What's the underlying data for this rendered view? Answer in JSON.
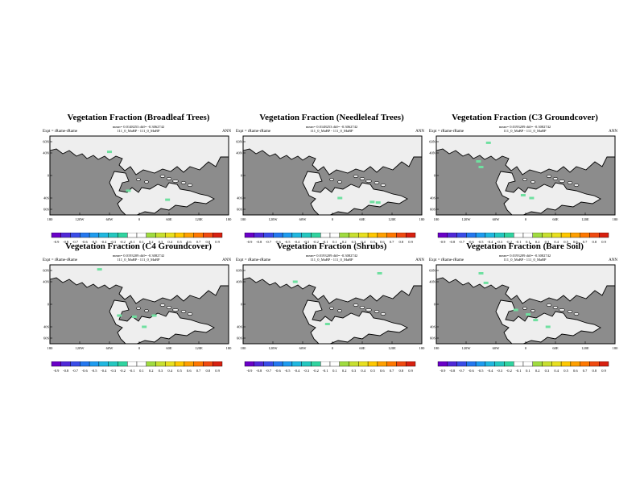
{
  "figure": {
    "panels": [
      {
        "title": "Vegetation Fraction (Broadleaf Trees)",
        "stats": "mean= 0.0148253 diff= -0.3062742",
        "runs": "111_0_MaBP - 111_0_MaBP",
        "expt": "Expt = rRame-rRame",
        "season": "ANN",
        "xticks": [
          "180",
          "120W",
          "60W",
          "0",
          "60E",
          "120E",
          "180"
        ],
        "patches": [
          [
            -60,
            42
          ],
          [
            -22,
            -27
          ],
          [
            57,
            -43
          ]
        ]
      },
      {
        "title": "Vegetation Fraction (Needleleaf Trees)",
        "stats": "mean= 0.0148253 diff= -0.3062742",
        "runs": "111_0_MaBP - 111_0_MaBP",
        "expt": "Expt = rRame-rRame",
        "season": "ANN",
        "xticks": [
          "180",
          "120W",
          "60W",
          "0",
          "60E",
          "120E",
          "180"
        ],
        "patches": [
          [
            15,
            -40
          ],
          [
            80,
            -47
          ],
          [
            92,
            -48
          ]
        ]
      },
      {
        "title": "Vegetation Fraction (C3 Groundcover)",
        "stats": "mean= 0.0193209 diff= -0.3082742",
        "runs": "111_0_MaBP - 111_0_MaBP",
        "expt": "Expt = rRame-rRame",
        "season": "ANN",
        "xticks": [
          "180",
          "120W",
          "60W",
          "0",
          "60E",
          "120E",
          "180"
        ],
        "patches": [
          [
            -95,
            25
          ],
          [
            -90,
            15
          ],
          [
            -75,
            58
          ],
          [
            -5,
            -35
          ],
          [
            12,
            -40
          ]
        ]
      },
      {
        "title": "Vegetation Fraction (C4 Groundcover)",
        "stats": "mean= 0.0193209 diff= -0.3082742",
        "runs": "111_0_MaBP - 111_0_MaBP",
        "expt": "Expt = rRame-rRame",
        "season": "ANN",
        "xticks": [
          "180",
          "120W",
          "60W",
          "0",
          "60E",
          "120E",
          "180"
        ],
        "patches": [
          [
            -80,
            62
          ],
          [
            -40,
            -20
          ],
          [
            -10,
            -22
          ],
          [
            30,
            -20
          ],
          [
            10,
            -40
          ]
        ]
      },
      {
        "title": "Vegetation Fraction (Shrubs)",
        "stats": "mean= 0.0193209 diff= -0.3082742",
        "runs": "111_0_MaBP - 111_0_MaBP",
        "expt": "Expt = rRame-rRame",
        "season": "ANN",
        "xticks": [
          "180",
          "120W",
          "60W",
          "0",
          "60E",
          "120E",
          "180"
        ],
        "patches": [
          [
            -75,
            40
          ],
          [
            -10,
            -35
          ],
          [
            95,
            55
          ]
        ]
      },
      {
        "title": "Vegetation Fraction (Bare Soil)",
        "stats": "mean= 0.0193209 diff= -0.3082742",
        "runs": "111_0_MaBP - 111_0_MaBP",
        "expt": "Expt = rRame-rRame",
        "season": "ANN",
        "xticks": [
          "180",
          "120W",
          "60W",
          "0",
          "60E",
          "120E",
          "180"
        ],
        "patches": [
          [
            -80,
            38
          ],
          [
            -90,
            55
          ],
          [
            -20,
            -10
          ],
          [
            5,
            -18
          ],
          [
            20,
            -28
          ],
          [
            45,
            -40
          ]
        ]
      }
    ],
    "yticks": [
      "60N",
      "40N",
      "0",
      "40S",
      "60S"
    ],
    "colorbar_labels": [
      "-0.9",
      "-0.8",
      "-0.7",
      "-0.6",
      "-0.5",
      "-0.4",
      "-0.3",
      "-0.2",
      "-0.1",
      "0.1",
      "0.2",
      "0.3",
      "0.4",
      "0.5",
      "0.6",
      "0.7",
      "0.8",
      "0.9"
    ],
    "colors": {
      "ocean": "#8c8c8c",
      "land": "#eeeeee",
      "coast": "#000000",
      "patch": "#6fe0a0"
    },
    "cbar_colors": [
      "#6a00c8",
      "#5028d8",
      "#3a4ce8",
      "#2478f0",
      "#1e9cf0",
      "#20b8e0",
      "#24c8c0",
      "#30d4a0",
      "#ffffff",
      "#ffffff",
      "#a0dc40",
      "#c8e030",
      "#e8e020",
      "#ffc800",
      "#ffa000",
      "#ff7800",
      "#f04a10",
      "#d82010"
    ]
  },
  "chart_data": [
    {
      "type": "heatmap",
      "title": "Vegetation Fraction (Broadleaf Trees)",
      "xlabel": "",
      "ylabel": "",
      "x_ticks": [
        "180",
        "120W",
        "60W",
        "0",
        "60E",
        "120E",
        "180"
      ],
      "y_ticks": [
        "60N",
        "40N",
        "0",
        "40S",
        "60S"
      ],
      "xlim": [
        -180,
        180
      ],
      "ylim": [
        -70,
        70
      ],
      "color_levels": [
        -0.9,
        -0.8,
        -0.7,
        -0.6,
        -0.5,
        -0.4,
        -0.3,
        -0.2,
        -0.1,
        0.1,
        0.2,
        0.3,
        0.4,
        0.5,
        0.6,
        0.7,
        0.8,
        0.9
      ]
    },
    {
      "type": "heatmap",
      "title": "Vegetation Fraction (Needleleaf Trees)",
      "xlabel": "",
      "ylabel": "",
      "x_ticks": [
        "180",
        "120W",
        "60W",
        "0",
        "60E",
        "120E",
        "180"
      ],
      "y_ticks": [
        "60N",
        "40N",
        "0",
        "40S",
        "60S"
      ],
      "xlim": [
        -180,
        180
      ],
      "ylim": [
        -70,
        70
      ],
      "color_levels": [
        -0.9,
        -0.8,
        -0.7,
        -0.6,
        -0.5,
        -0.4,
        -0.3,
        -0.2,
        -0.1,
        0.1,
        0.2,
        0.3,
        0.4,
        0.5,
        0.6,
        0.7,
        0.8,
        0.9
      ]
    },
    {
      "type": "heatmap",
      "title": "Vegetation Fraction (C3 Groundcover)",
      "xlabel": "",
      "ylabel": "",
      "x_ticks": [
        "180",
        "120W",
        "60W",
        "0",
        "60E",
        "120E",
        "180"
      ],
      "y_ticks": [
        "60N",
        "40N",
        "0",
        "40S",
        "60S"
      ],
      "xlim": [
        -180,
        180
      ],
      "ylim": [
        -70,
        70
      ],
      "color_levels": [
        -0.9,
        -0.8,
        -0.7,
        -0.6,
        -0.5,
        -0.4,
        -0.3,
        -0.2,
        -0.1,
        0.1,
        0.2,
        0.3,
        0.4,
        0.5,
        0.6,
        0.7,
        0.8,
        0.9
      ]
    },
    {
      "type": "heatmap",
      "title": "Vegetation Fraction (C4 Groundcover)",
      "xlabel": "",
      "ylabel": "",
      "x_ticks": [
        "180",
        "120W",
        "60W",
        "0",
        "60E",
        "120E",
        "180"
      ],
      "y_ticks": [
        "60N",
        "40N",
        "0",
        "40S",
        "60S"
      ],
      "xlim": [
        -180,
        180
      ],
      "ylim": [
        -70,
        70
      ],
      "color_levels": [
        -0.9,
        -0.8,
        -0.7,
        -0.6,
        -0.5,
        -0.4,
        -0.3,
        -0.2,
        -0.1,
        0.1,
        0.2,
        0.3,
        0.4,
        0.5,
        0.6,
        0.7,
        0.8,
        0.9
      ]
    },
    {
      "type": "heatmap",
      "title": "Vegetation Fraction (Shrubs)",
      "xlabel": "",
      "ylabel": "",
      "x_ticks": [
        "180",
        "120W",
        "60W",
        "0",
        "60E",
        "120E",
        "180"
      ],
      "y_ticks": [
        "60N",
        "40N",
        "0",
        "40S",
        "60S"
      ],
      "xlim": [
        -180,
        180
      ],
      "ylim": [
        -70,
        70
      ],
      "color_levels": [
        -0.9,
        -0.8,
        -0.7,
        -0.6,
        -0.5,
        -0.4,
        -0.3,
        -0.2,
        -0.1,
        0.1,
        0.2,
        0.3,
        0.4,
        0.5,
        0.6,
        0.7,
        0.8,
        0.9
      ]
    },
    {
      "type": "heatmap",
      "title": "Vegetation Fraction (Bare Soil)",
      "xlabel": "",
      "ylabel": "",
      "x_ticks": [
        "180",
        "120W",
        "60W",
        "0",
        "60E",
        "120E",
        "180"
      ],
      "y_ticks": [
        "60N",
        "40N",
        "0",
        "40S",
        "60S"
      ],
      "xlim": [
        -180,
        180
      ],
      "ylim": [
        -70,
        70
      ],
      "color_levels": [
        -0.9,
        -0.8,
        -0.7,
        -0.6,
        -0.5,
        -0.4,
        -0.3,
        -0.2,
        -0.1,
        0.1,
        0.2,
        0.3,
        0.4,
        0.5,
        0.6,
        0.7,
        0.8,
        0.9
      ]
    }
  ]
}
